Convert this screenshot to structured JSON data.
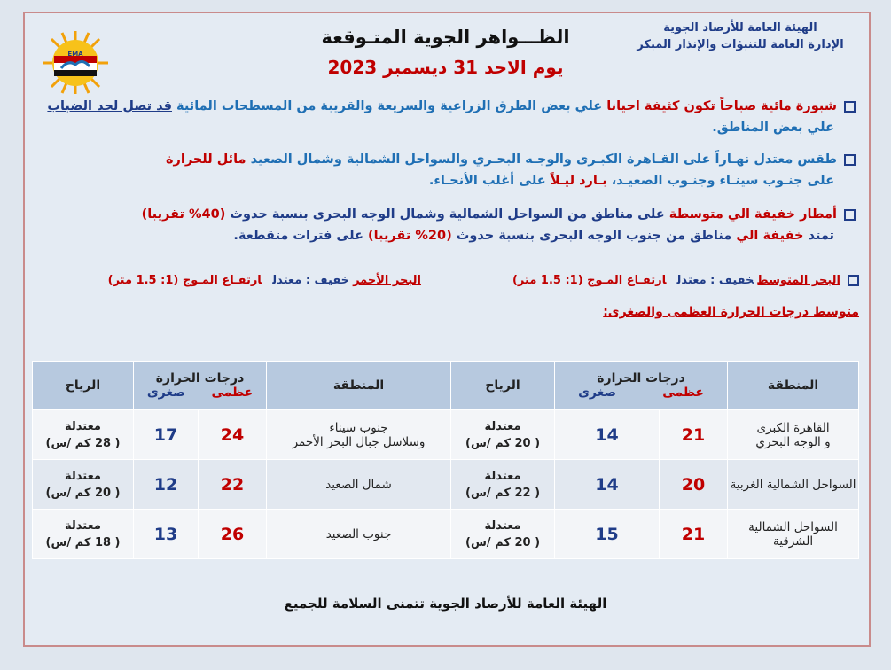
{
  "header": {
    "org": [
      "الهيئة العامة للأرصاد الجوية",
      "الإدارة العامة للتنبؤات والإنذار المبكر"
    ],
    "title": "الظـــواهر الجوية المتـوقعة",
    "date": "يوم  الاحد 31 ديسمبر 2023",
    "logo_text": "EMA"
  },
  "bullets": [
    {
      "lines": [
        [
          {
            "text": "شبورة مائية صباحاً تكون كثيفة احيانا",
            "color": "#c00000"
          },
          {
            "text": " علي بعض الطرق الزراعية والسريعة والقريبة من المسطحات المائية ",
            "color": "#1f6fb4"
          },
          {
            "text": "قد تصل لحد الضباب",
            "color": "#1f3c88",
            "underline": true
          }
        ],
        [
          {
            "text": "علي بعض المناطق.",
            "color": "#1f6fb4"
          }
        ]
      ]
    },
    {
      "lines": [
        [
          {
            "text": "طقس معتدل نهـاراً",
            "color": "#1f6fb4"
          },
          {
            "text": " على القـاهرة الكبـرى والوجـه البحـري والسواحل الشمالية وشمال الصعيد ",
            "color": "#1f6fb4"
          },
          {
            "text": "مائل للحرارة",
            "color": "#c00000"
          }
        ],
        [
          {
            "text": "على جنـوب سينـاء وجنـوب الصعيـد، ",
            "color": "#1f6fb4"
          },
          {
            "text": "بـارد ليـلاً",
            "color": "#c00000"
          },
          {
            "text": " على أغلب الأنحـاء.",
            "color": "#1f6fb4"
          }
        ]
      ]
    },
    {
      "lines": [
        [
          {
            "text": "أمطار خفيفة الي متوسطة",
            "color": "#c00000"
          },
          {
            "text": " على مناطق من السواحل الشمالية وشمال الوجه البحرى بنسبة حدوث ",
            "color": "#1f3c88"
          },
          {
            "text": "(40% تقريبا)",
            "color": "#c00000"
          }
        ],
        [
          {
            "text": "تمتد ",
            "color": "#1f3c88"
          },
          {
            "text": "خفيفة الي",
            "color": "#c00000"
          },
          {
            "text": " مناطق من جنوب الوجه البحرى بنسبة حدوث ",
            "color": "#1f3c88"
          },
          {
            "text": "(20% تقريبا)",
            "color": "#c00000"
          },
          {
            "text": " على فترات متقطعة.",
            "color": "#1f3c88"
          }
        ]
      ]
    }
  ],
  "seas": [
    {
      "name": "البحر المتوسط",
      "state": "خفيف : معتدل",
      "wave": "ارتفـاع المـوج (1: 1.5 متر)"
    },
    {
      "name": "البحر الأحمر",
      "state": "خفيف : معتدل",
      "wave": "ارتفـاع المـوج (1: 1.5 متر)"
    }
  ],
  "temps_heading": "متوسط درجات الحرارة العظمى والصغرى:",
  "table": {
    "headers": {
      "region": "المنطقة",
      "temps": "درجات الحرارة",
      "max": "عظمى",
      "min": "صغرى",
      "wind": "الرياح"
    },
    "rows": [
      {
        "region": [
          "القاهرة الكبرى",
          "و الوجه البحري"
        ],
        "max": 21,
        "min": 14,
        "wind": "معتدلة",
        "speed": "( 20 كم /س)"
      },
      {
        "region": [
          "السواحل الشمالية الغربية"
        ],
        "max": 20,
        "min": 14,
        "wind": "معتدلة",
        "speed": "( 22 كم /س)"
      },
      {
        "region": [
          "السواحل الشمالية الشرقية"
        ],
        "max": 21,
        "min": 15,
        "wind": "معتدلة",
        "speed": "( 20 كم /س)"
      },
      {
        "region": [
          "جنوب سيناء",
          "وسلاسل جبال البحر الأحمر"
        ],
        "max": 24,
        "min": 17,
        "wind": "معتدلة",
        "speed": "( 28 كم /س)"
      },
      {
        "region": [
          "شمال الصعيد"
        ],
        "max": 22,
        "min": 12,
        "wind": "معتدلة",
        "speed": "( 20 كم /س)"
      },
      {
        "region": [
          "جنوب الصعيد"
        ],
        "max": 26,
        "min": 13,
        "wind": "معتدلة",
        "speed": "( 18 كم /س)"
      }
    ]
  },
  "footer": "الهيئة العامة للأرصاد الجوية تتمنى السلامة للجميع"
}
